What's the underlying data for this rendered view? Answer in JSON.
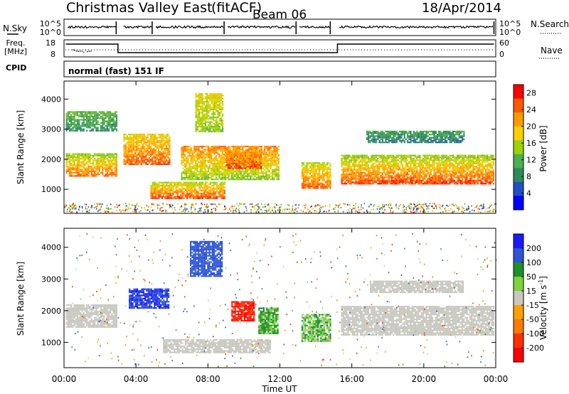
{
  "header": {
    "station": "Christmas Valley East",
    "mode": "(fitACF)",
    "beam": "Beam 06",
    "date": "18/Apr/2014"
  },
  "status_panels": {
    "nsky_label": "N.Sky",
    "nsearch_label": "N.Search",
    "freq_label_1": "Freq.",
    "freq_label_2": "[MHz]",
    "nave_label": "Nave",
    "cpid_label": "CPID",
    "cpid_value": "normal (fast) 151 IF",
    "noise_left_ticks": [
      "10^5",
      "10^0"
    ],
    "noise_right_ticks": [
      "10^5",
      "10^0"
    ],
    "freq_ticks": [
      "18",
      "8"
    ],
    "nave_ticks": [
      "60",
      "0"
    ]
  },
  "chart_data": [
    {
      "type": "heatmap",
      "panel": "power",
      "ylabel": "Slant Range [km]",
      "xlim": [
        0,
        24
      ],
      "ylim": [
        200,
        4600
      ],
      "yticks": [
        1000,
        2000,
        3000,
        4000
      ],
      "colorbar": {
        "label": "Power [dB]",
        "ticks": [
          4,
          8,
          12,
          16,
          20,
          24,
          28
        ],
        "range": [
          0,
          30
        ],
        "colors": [
          "#0000ff",
          "#1e50c8",
          "#2e8b57",
          "#4caf50",
          "#9bd400",
          "#ffd000",
          "#ff9a00",
          "#ff5a00",
          "#ff0000"
        ]
      },
      "regions": [
        {
          "t0": 0.1,
          "t1": 2.9,
          "r0": 1450,
          "r1": 2200,
          "v0": 26,
          "v1": 14
        },
        {
          "t0": 0.1,
          "t1": 2.9,
          "r0": 2950,
          "r1": 3600,
          "v0": 8,
          "v1": 12
        },
        {
          "t0": 3.3,
          "t1": 5.9,
          "r0": 1850,
          "r1": 2850,
          "v0": 26,
          "v1": 18
        },
        {
          "t0": 4.8,
          "t1": 8.9,
          "r0": 700,
          "r1": 1250,
          "v0": 28,
          "v1": 16
        },
        {
          "t0": 6.5,
          "t1": 11.9,
          "r0": 1350,
          "r1": 2450,
          "v0": 14,
          "v1": 24
        },
        {
          "t0": 9.0,
          "t1": 11.0,
          "r0": 1700,
          "r1": 2300,
          "v0": 28,
          "v1": 22
        },
        {
          "t0": 13.2,
          "t1": 14.8,
          "r0": 1050,
          "r1": 1900,
          "v0": 26,
          "v1": 16
        },
        {
          "t0": 15.4,
          "t1": 23.9,
          "r0": 1200,
          "r1": 2150,
          "v0": 28,
          "v1": 14
        },
        {
          "t0": 16.8,
          "t1": 22.2,
          "r0": 2550,
          "r1": 2950,
          "v0": 6,
          "v1": 10
        },
        {
          "t0": 7.3,
          "t1": 8.8,
          "r0": 2900,
          "r1": 4200,
          "v0": 14,
          "v1": 18
        }
      ]
    },
    {
      "type": "heatmap",
      "panel": "velocity",
      "ylabel": "Slant Range [km]",
      "xlabel": "Time UT",
      "xlim": [
        0,
        24
      ],
      "ylim": [
        200,
        4600
      ],
      "xticks": [
        "00:00",
        "04:00",
        "08:00",
        "12:00",
        "16:00",
        "20:00",
        "00:00"
      ],
      "yticks": [
        1000,
        2000,
        3000,
        4000
      ],
      "colorbar": {
        "label": "Velocity [m s",
        "label_exponent": "-1",
        "ticks": [
          200,
          100,
          50,
          15,
          -15,
          -50,
          -100,
          -200
        ],
        "colors": [
          "#1a1aff",
          "#2c55d8",
          "#1f8f2a",
          "#7bd43a",
          "#c8c8c0",
          "#ffa000",
          "#ff7a00",
          "#ff3000",
          "#ff0000"
        ]
      },
      "regions": [
        {
          "t0": 0.1,
          "t1": 2.9,
          "r0": 1500,
          "r1": 2200,
          "v": 0
        },
        {
          "t0": 3.6,
          "t1": 5.8,
          "r0": 2100,
          "r1": 2700,
          "v": 200
        },
        {
          "t0": 9.3,
          "t1": 10.6,
          "r0": 1700,
          "r1": 2300,
          "v": -200
        },
        {
          "t0": 10.8,
          "t1": 11.9,
          "r0": 1300,
          "r1": 2100,
          "v": 60
        },
        {
          "t0": 13.2,
          "t1": 14.8,
          "r0": 1050,
          "r1": 1900,
          "v": 40
        },
        {
          "t0": 15.4,
          "t1": 23.9,
          "r0": 1250,
          "r1": 2150,
          "v": 0
        },
        {
          "t0": 17.0,
          "t1": 22.2,
          "r0": 2600,
          "r1": 2950,
          "v": 0
        },
        {
          "t0": 5.5,
          "t1": 11.5,
          "r0": 700,
          "r1": 1100,
          "v": 0
        },
        {
          "t0": 7.0,
          "t1": 8.8,
          "r0": 3100,
          "r1": 4200,
          "v": 150
        }
      ]
    }
  ]
}
